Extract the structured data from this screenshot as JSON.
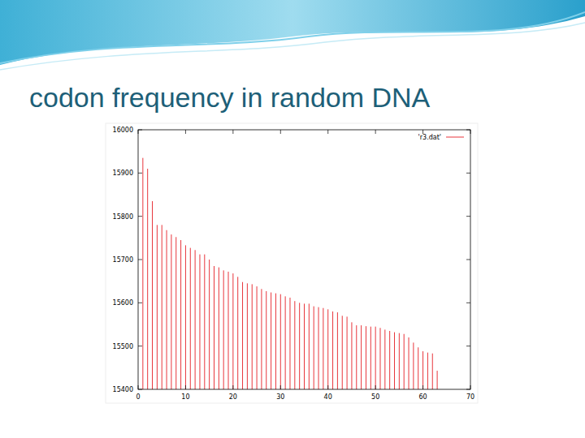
{
  "chart_data": {
    "type": "bar",
    "title": "codon frequency in random DNA",
    "series": [
      {
        "name": "'r3.dat'",
        "color": "#e8363c",
        "x": [
          1,
          2,
          3,
          4,
          5,
          6,
          7,
          8,
          9,
          10,
          11,
          12,
          13,
          14,
          15,
          16,
          17,
          18,
          19,
          20,
          21,
          22,
          23,
          24,
          25,
          26,
          27,
          28,
          29,
          30,
          31,
          32,
          33,
          34,
          35,
          36,
          37,
          38,
          39,
          40,
          41,
          42,
          43,
          44,
          45,
          46,
          47,
          48,
          49,
          50,
          51,
          52,
          53,
          54,
          55,
          56,
          57,
          58,
          59,
          60,
          61,
          62,
          63
        ],
        "values": [
          15935,
          15910,
          15835,
          15780,
          15780,
          15768,
          15758,
          15752,
          15745,
          15733,
          15727,
          15722,
          15712,
          15712,
          15700,
          15685,
          15682,
          15675,
          15672,
          15668,
          15660,
          15648,
          15645,
          15643,
          15638,
          15632,
          15627,
          15624,
          15622,
          15620,
          15615,
          15612,
          15604,
          15600,
          15598,
          15598,
          15592,
          15590,
          15588,
          15585,
          15580,
          15578,
          15570,
          15568,
          15555,
          15548,
          15548,
          15546,
          15545,
          15545,
          15542,
          15538,
          15535,
          15532,
          15530,
          15528,
          15520,
          15508,
          15497,
          15488,
          15485,
          15483,
          15443
        ]
      }
    ],
    "xlim": [
      0,
      70
    ],
    "xticks": [
      0,
      10,
      20,
      30,
      40,
      50,
      60,
      70
    ],
    "ylim": [
      15400,
      16000
    ],
    "yticks": [
      15400,
      15500,
      15600,
      15700,
      15800,
      15900,
      16000
    ],
    "grid": false,
    "legend": "top-right"
  }
}
